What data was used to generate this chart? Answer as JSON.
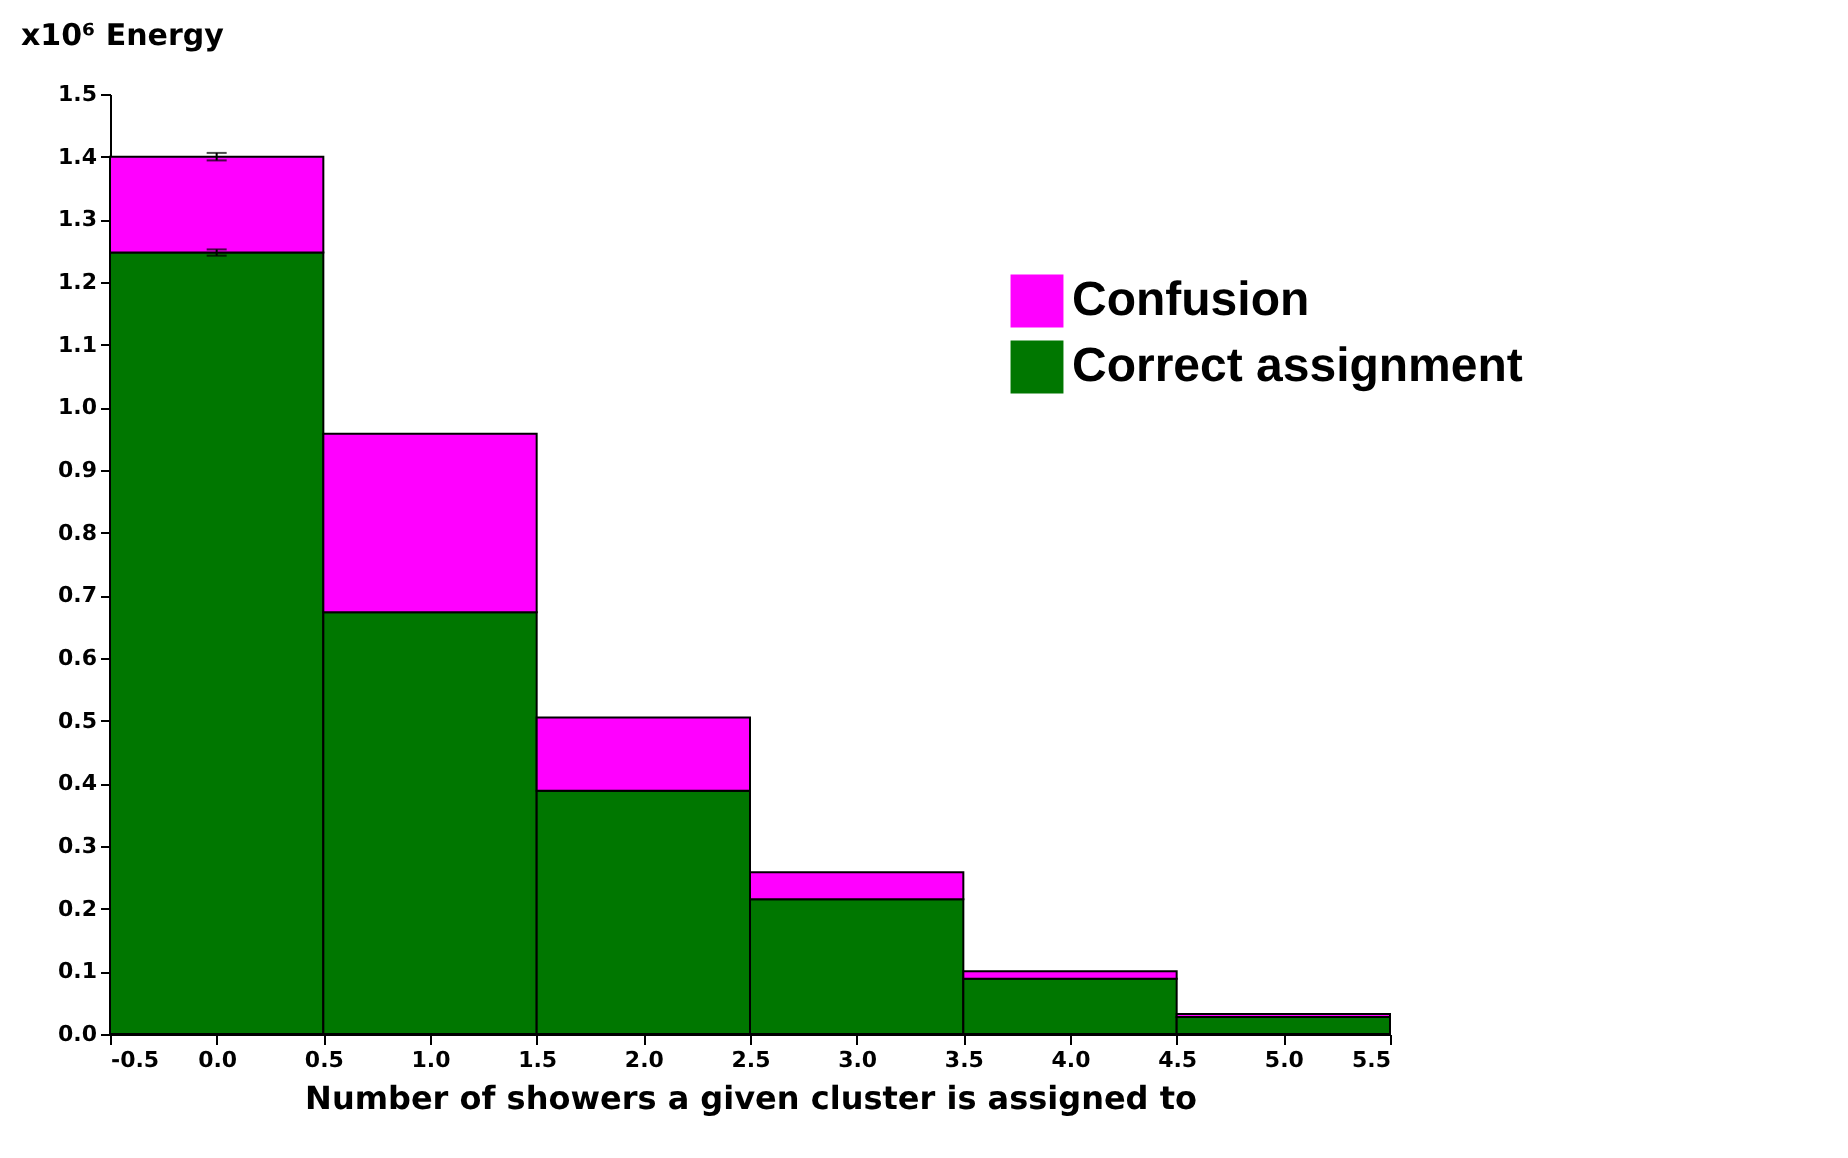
{
  "chart_data": {
    "type": "bar",
    "ylabel": "x10⁶ Energy",
    "xlabel": "Number of showers a given cluster is assigned to",
    "x": [
      0,
      1,
      2,
      3,
      4,
      5
    ],
    "stacked": true,
    "series": [
      {
        "name": "Correct assignment",
        "color": "#007700",
        "values": [
          1.247,
          0.673,
          0.388,
          0.215,
          0.088,
          0.027
        ],
        "errors": [
          0.005,
          null,
          null,
          null,
          null,
          null
        ]
      },
      {
        "name": "Confusion",
        "color": "#ff00ff",
        "values": [
          0.153,
          0.285,
          0.117,
          0.043,
          0.012,
          0.005
        ],
        "errors": [
          0.006,
          null,
          null,
          null,
          null,
          null
        ]
      }
    ],
    "xlim": [
      -0.5,
      5.5
    ],
    "xticks": [
      -0.5,
      {
        "value": 0,
        "label": "0.0"
      },
      0.5,
      {
        "value": 1,
        "label": "1.0"
      },
      1.5,
      {
        "value": 2,
        "label": "2.0"
      },
      2.5,
      {
        "value": 3,
        "label": "3.0"
      },
      3.5,
      {
        "value": 4,
        "label": "4.0"
      },
      4.5,
      {
        "value": 5,
        "label": "5.0"
      },
      5.5
    ],
    "ylim": [
      0,
      1.5
    ],
    "yticks": [
      {
        "value": 0,
        "label": "0.0"
      },
      0.1,
      0.2,
      0.3,
      0.4,
      0.5,
      0.6,
      0.7,
      0.8,
      0.9,
      {
        "value": 1,
        "label": "1.0"
      },
      1.1,
      1.2,
      1.3,
      1.4,
      1.5
    ],
    "grid": false,
    "legend": "right"
  }
}
